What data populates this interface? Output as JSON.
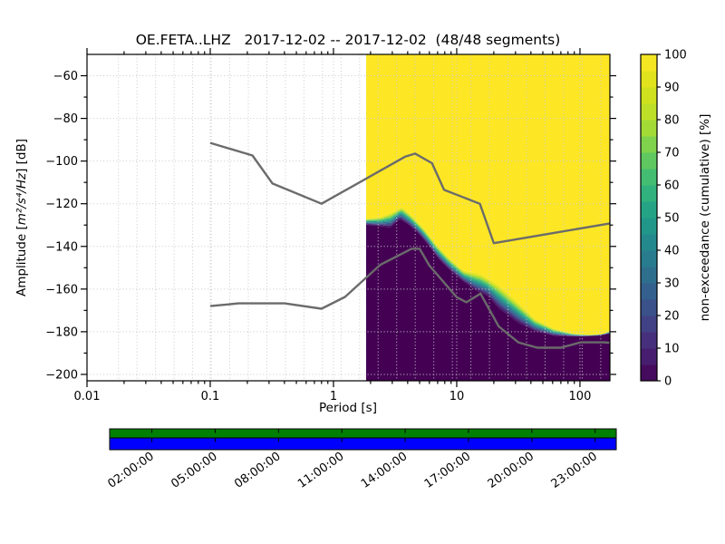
{
  "title": "OE.FETA..LHZ   2017-12-02 -- 2017-12-02  (48/48 segments)",
  "axes": {
    "xlabel": "Period [s]",
    "ylabel": {
      "prefix": "Amplitude [",
      "math": "m²/s⁴/Hz",
      "suffix": "] [dB]"
    }
  },
  "chart_data": {
    "type": "heatmap",
    "title": "OE.FETA..LHZ 2017-12-02 -- 2017-12-02 (48/48 segments)",
    "station": "OE.FETA..LHZ",
    "date_range": "2017-12-02 -- 2017-12-02",
    "segments": "48/48",
    "xlabel": "Period [s]",
    "ylabel": "Amplitude [m²/s⁴/Hz] [dB]",
    "x_scale": "log",
    "xlim": [
      0.01,
      175
    ],
    "ylim": [
      -203,
      -50
    ],
    "grid": {
      "style": "dotted",
      "color": "#c9c9c9"
    },
    "x_ticks": [
      {
        "v": 0.01,
        "label": "0.01"
      },
      {
        "v": 0.1,
        "label": "0.1"
      },
      {
        "v": 1,
        "label": "1"
      },
      {
        "v": 10,
        "label": "10"
      },
      {
        "v": 100,
        "label": "100"
      }
    ],
    "y_ticks": [
      {
        "v": -60,
        "label": "−60"
      },
      {
        "v": -80,
        "label": "−80"
      },
      {
        "v": -100,
        "label": "−100"
      },
      {
        "v": -120,
        "label": "−120"
      },
      {
        "v": -140,
        "label": "−140"
      },
      {
        "v": -160,
        "label": "−160"
      },
      {
        "v": -180,
        "label": "−180"
      },
      {
        "v": -200,
        "label": "−200"
      }
    ],
    "colorbar": {
      "label": "non-exceedance (cumulative) [%]",
      "min": 0,
      "max": 100,
      "n_blocks": 20,
      "ticks": [
        "0",
        "10",
        "20",
        "30",
        "40",
        "50",
        "60",
        "70",
        "80",
        "90",
        "100"
      ],
      "cmap": "viridis",
      "stops": [
        "#440154",
        "#482878",
        "#3e4989",
        "#31688e",
        "#26828e",
        "#1f9e89",
        "#35b779",
        "#6ece58",
        "#b5de2b",
        "#d8e219",
        "#fde725"
      ]
    },
    "histogram": {
      "period_start": 1.84,
      "period_end": 175,
      "boundary_100pct": [
        [
          1.84,
          -127.0
        ],
        [
          2.4,
          -126.3
        ],
        [
          3.0,
          -124.0
        ],
        [
          3.6,
          -121.5
        ],
        [
          4.3,
          -125.5
        ],
        [
          5.4,
          -131.5
        ],
        [
          6.8,
          -139.0
        ],
        [
          8.5,
          -145.0
        ],
        [
          11.3,
          -151.3
        ],
        [
          15.8,
          -153.0
        ],
        [
          22,
          -158.3
        ],
        [
          31,
          -166.0
        ],
        [
          43,
          -174.0
        ],
        [
          61,
          -178.5
        ],
        [
          86,
          -180.8
        ],
        [
          121,
          -181.5
        ],
        [
          155,
          -181.0
        ],
        [
          175,
          -179.5
        ]
      ],
      "boundary_0pct": [
        [
          1.84,
          -129.8
        ],
        [
          2.9,
          -131.0
        ],
        [
          3.45,
          -127.0
        ],
        [
          4.2,
          -130.3
        ],
        [
          5.0,
          -134.3
        ],
        [
          5.9,
          -139.3
        ],
        [
          7.1,
          -145.6
        ],
        [
          8.8,
          -151.0
        ],
        [
          11.3,
          -156.3
        ],
        [
          14.5,
          -160.7
        ],
        [
          18,
          -163.2
        ],
        [
          22,
          -169.0
        ],
        [
          31,
          -175.4
        ],
        [
          43,
          -179.6
        ],
        [
          61,
          -181.8
        ],
        [
          100,
          -182.2
        ],
        [
          140,
          -181.8
        ],
        [
          175,
          -180.8
        ]
      ]
    },
    "noise_models": {
      "color": "#6b6b6b",
      "nhnm": [
        [
          0.1,
          -91.5
        ],
        [
          0.22,
          -97.4
        ],
        [
          0.32,
          -110.5
        ],
        [
          0.8,
          -120.0
        ],
        [
          3.8,
          -98.0
        ],
        [
          4.6,
          -96.5
        ],
        [
          6.3,
          -101.0
        ],
        [
          7.9,
          -113.5
        ],
        [
          15.4,
          -120.0
        ],
        [
          20.0,
          -138.5
        ],
        [
          175,
          -129.2
        ]
      ],
      "nlnm": [
        [
          0.1,
          -168.0
        ],
        [
          0.17,
          -166.7
        ],
        [
          0.4,
          -166.7
        ],
        [
          0.8,
          -169.2
        ],
        [
          1.24,
          -163.7
        ],
        [
          2.4,
          -148.6
        ],
        [
          4.3,
          -141.1
        ],
        [
          5.0,
          -141.1
        ],
        [
          6.0,
          -149.0
        ],
        [
          10.0,
          -163.8
        ],
        [
          12.0,
          -166.2
        ],
        [
          15.6,
          -162.1
        ],
        [
          21.9,
          -177.5
        ],
        [
          31.6,
          -185.0
        ],
        [
          45.0,
          -187.5
        ],
        [
          70.0,
          -187.5
        ],
        [
          101.0,
          -185.0
        ],
        [
          154.0,
          -185.0
        ],
        [
          175.0,
          -185.2
        ]
      ]
    },
    "coverage": {
      "bar_color_top": "#008000",
      "bar_color_bottom": "#0000ff",
      "t_start_hours": 0,
      "t_end_hours": 24,
      "tick_hours": [
        2,
        5,
        8,
        11,
        14,
        17,
        20,
        23
      ],
      "tick_labels": [
        "02:00:00",
        "05:00:00",
        "08:00:00",
        "11:00:00",
        "14:00:00",
        "17:00:00",
        "20:00:00",
        "23:00:00"
      ]
    }
  }
}
